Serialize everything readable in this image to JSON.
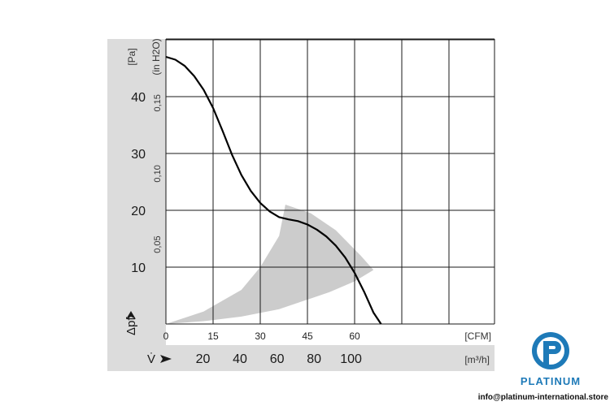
{
  "chart_data": {
    "type": "line",
    "pressure_unit_label": "[Pa]",
    "pressure_symbol": "Δpf",
    "alt_pressure_unit_label": "(in H2O)",
    "flow_symbol": "V̇",
    "cfm_unit_label": "[CFM]",
    "m3h_unit_label": "[m³/h]",
    "x_cfm": {
      "range": [
        0,
        75
      ],
      "ticks": [
        0,
        15,
        30,
        45,
        60
      ],
      "tick_labels": [
        "0",
        "15",
        "30",
        "45",
        "60"
      ]
    },
    "x_m3h": {
      "ticks": [
        20,
        40,
        60,
        80,
        100
      ],
      "tick_labels": [
        "20",
        "40",
        "60",
        "80",
        "100"
      ]
    },
    "y_pa": {
      "range": [
        0,
        47
      ],
      "ticks": [
        10,
        20,
        30,
        40
      ],
      "tick_labels": [
        "10",
        "20",
        "30",
        "40"
      ]
    },
    "y_inh2o": {
      "ticks": [
        0.05,
        0.1,
        0.15
      ],
      "tick_labels": [
        "0,05",
        "0,10",
        "0,15"
      ]
    },
    "grid": true,
    "series": [
      {
        "x": [
          0,
          3,
          6,
          9,
          12,
          15,
          18,
          21,
          24,
          27,
          30,
          33,
          36,
          39,
          42,
          45,
          48,
          51,
          54,
          57,
          60,
          63,
          66,
          68.4
        ],
        "y": [
          47.0,
          46.5,
          45.4,
          43.6,
          41.2,
          38.0,
          34.0,
          29.8,
          26.2,
          23.4,
          21.3,
          19.8,
          18.8,
          18.4,
          18.1,
          17.5,
          16.6,
          15.4,
          13.8,
          11.7,
          9.0,
          5.7,
          2.0,
          0
        ]
      }
    ],
    "operating_range_polygon": {
      "x": [
        0,
        12,
        24,
        30,
        36,
        38,
        46,
        54,
        62,
        66,
        60,
        52,
        44,
        36,
        24,
        12,
        0
      ],
      "y": [
        0,
        2.2,
        6,
        10,
        15.5,
        21,
        19.5,
        16.5,
        12,
        9.5,
        7.5,
        5.6,
        4.1,
        2.6,
        1.3,
        0.5,
        0
      ]
    },
    "colors": {
      "curve": "#000000",
      "grid": "#1a1a1a",
      "operating_range": "#cccccc",
      "axis_band": "#dcdcdc"
    }
  },
  "logo": {
    "word": "PLATINUM",
    "url": "info@platinum-international.store",
    "colors": {
      "primary": "#1e7ab8"
    }
  }
}
